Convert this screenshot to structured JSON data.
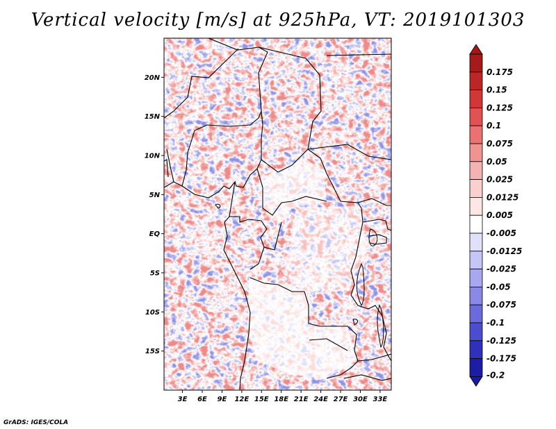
{
  "title": "Vertical velocity [m/s] at 925hPa, VT: 2019101303",
  "credit": "GrADS: IGES/COLA",
  "map": {
    "lat_ticks": [
      {
        "lat": 20,
        "label": "20N"
      },
      {
        "lat": 15,
        "label": "15N"
      },
      {
        "lat": 10,
        "label": "10N"
      },
      {
        "lat": 5,
        "label": "5N"
      },
      {
        "lat": 0,
        "label": "EQ"
      },
      {
        "lat": -5,
        "label": "5S"
      },
      {
        "lat": -10,
        "label": "10S"
      },
      {
        "lat": -15,
        "label": "15S"
      }
    ],
    "lon_ticks": [
      {
        "lon": 3,
        "label": "3E"
      },
      {
        "lon": 6,
        "label": "6E"
      },
      {
        "lon": 9,
        "label": "9E"
      },
      {
        "lon": 12,
        "label": "12E"
      },
      {
        "lon": 15,
        "label": "15E"
      },
      {
        "lon": 18,
        "label": "18E"
      },
      {
        "lon": 21,
        "label": "21E"
      },
      {
        "lon": 24,
        "label": "24E"
      },
      {
        "lon": 27,
        "label": "27E"
      },
      {
        "lon": 30,
        "label": "30E"
      },
      {
        "lon": 33,
        "label": "33E"
      }
    ],
    "lon_range": [
      0.2,
      34.7
    ],
    "lat_range": [
      -20,
      25
    ]
  },
  "colorbar": {
    "levels": [
      {
        "label": "0.175",
        "color": "#a51a1a"
      },
      {
        "label": "0.15",
        "color": "#bd2626"
      },
      {
        "label": "0.125",
        "color": "#d23737"
      },
      {
        "label": "0.1",
        "color": "#e15353"
      },
      {
        "label": "0.075",
        "color": "#ea7272"
      },
      {
        "label": "0.05",
        "color": "#f09393"
      },
      {
        "label": "0.025",
        "color": "#f5b2b2"
      },
      {
        "label": "0.0125",
        "color": "#f9cfcf"
      },
      {
        "label": "0.005",
        "color": "#fce6e6"
      },
      {
        "label": "-0.005",
        "color": "#ffffff"
      },
      {
        "label": "-0.0125",
        "color": "#e1e1fb"
      },
      {
        "label": "-0.025",
        "color": "#c6c6f6"
      },
      {
        "label": "-0.05",
        "color": "#a8a8ef"
      },
      {
        "label": "-0.075",
        "color": "#8a8ae6"
      },
      {
        "label": "-0.1",
        "color": "#6b6bdb"
      },
      {
        "label": "-0.125",
        "color": "#4c4cce"
      },
      {
        "label": "-0.175",
        "color": "#3030bc"
      },
      {
        "label": "-0.2",
        "color": "#1c1ca6"
      }
    ],
    "top_color": "#a01818",
    "bottom_color": "#1a1a9a"
  }
}
